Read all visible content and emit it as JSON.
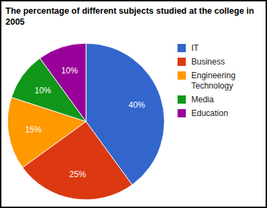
{
  "chart_data": {
    "type": "pie",
    "title": "The percentage of different subjects studied at the college in 2005",
    "categories": [
      "IT",
      "Business",
      "Engineering Technology",
      "Media",
      "Education"
    ],
    "values": [
      40,
      25,
      15,
      10,
      10
    ],
    "value_labels": [
      "40%",
      "25%",
      "15%",
      "10%",
      "10%"
    ],
    "colors": [
      "#3366cc",
      "#dc3912",
      "#ff9900",
      "#109618",
      "#990099"
    ],
    "data_labels": true,
    "legend": "right"
  }
}
